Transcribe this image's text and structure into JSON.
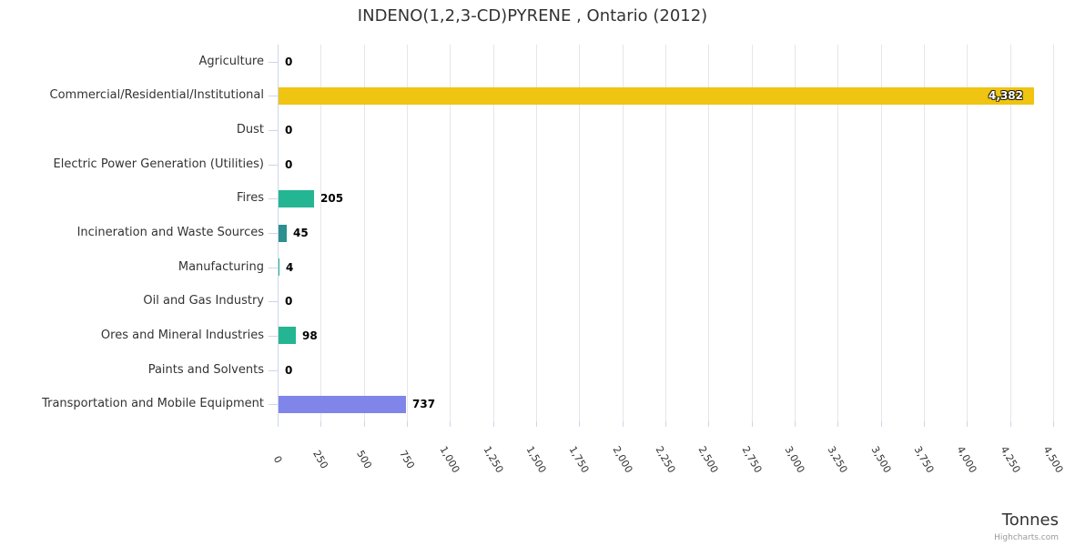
{
  "chart": {
    "title": "INDENO(1,2,3-CD)PYRENE , Ontario (2012)",
    "x_axis_title": "Tonnes",
    "credit": "Highcharts.com"
  },
  "chart_data": {
    "type": "bar",
    "orientation": "horizontal",
    "title": "INDENO(1,2,3-CD)PYRENE , Ontario (2012)",
    "categories": [
      "Agriculture",
      "Commercial/Residential/Institutional",
      "Dust",
      "Electric Power Generation (Utilities)",
      "Fires",
      "Incineration and Waste Sources",
      "Manufacturing",
      "Oil and Gas Industry",
      "Ores and Mineral Industries",
      "Paints and Solvents",
      "Transportation and Mobile Equipment"
    ],
    "values": [
      0,
      4382,
      0,
      0,
      205,
      45,
      4,
      0,
      98,
      0,
      737
    ],
    "value_labels": [
      "0",
      "4,382",
      "0",
      "0",
      "205",
      "45",
      "4",
      "0",
      "98",
      "0",
      "737"
    ],
    "bar_colors": [
      "#24b592",
      "#efc413",
      "#24b592",
      "#24b592",
      "#24b592",
      "#2b908f",
      "#24b592",
      "#24b592",
      "#24b592",
      "#24b592",
      "#8085e9"
    ],
    "xlabel": "Tonnes",
    "xlim": [
      0,
      4500
    ],
    "x_tick_interval": 250,
    "x_tick_labels": [
      "0",
      "250",
      "500",
      "750",
      "1,000",
      "1,250",
      "1,500",
      "1,750",
      "2,000",
      "2,250",
      "2,500",
      "2,750",
      "3,000",
      "3,250",
      "3,500",
      "3,750",
      "4,000",
      "4,250",
      "4,500"
    ],
    "grid": true,
    "legend": "none",
    "colors": {
      "grid_line": "#e6e6e6",
      "axis_line": "#ccd6eb",
      "tick": "#ccd6eb",
      "title_text": "#333333",
      "label_text": "#333333",
      "value_label_text": "#000000",
      "inside_label_text": "#ffffff",
      "credit_text": "#999999",
      "background": "#ffffff"
    }
  }
}
